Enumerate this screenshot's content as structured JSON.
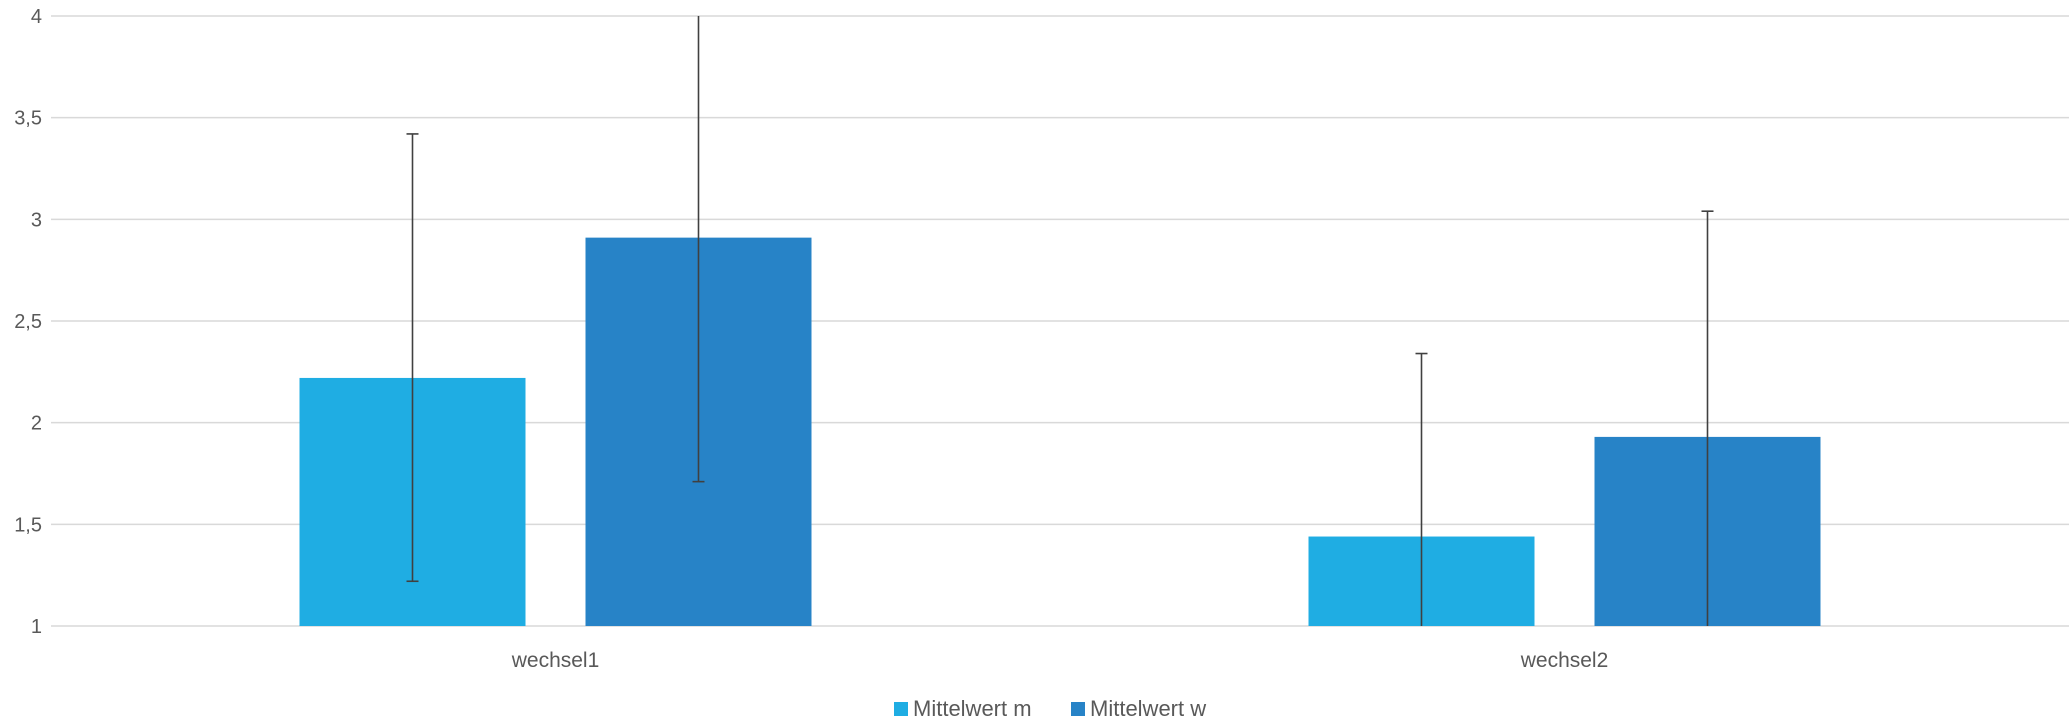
{
  "chart_data": {
    "type": "bar",
    "categories": [
      "wechsel1",
      "wechsel2"
    ],
    "series": [
      {
        "name": "Mittelwert m",
        "color": "#1FADE3",
        "values": [
          2.22,
          1.44
        ],
        "error_high": [
          3.42,
          2.34
        ],
        "error_low": [
          1.22,
          1.0
        ]
      },
      {
        "name": "Mittelwert w",
        "color": "#2783C7",
        "values": [
          2.91,
          1.93
        ],
        "error_high": [
          4.0,
          3.04
        ],
        "error_low": [
          1.71,
          1.0
        ]
      }
    ],
    "y_ticks": [
      "1",
      "1,5",
      "2",
      "2,5",
      "3",
      "3,5",
      "4"
    ],
    "y_tick_values": [
      1,
      1.5,
      2,
      2.5,
      3,
      3.5,
      4
    ],
    "ylim": [
      1,
      4
    ],
    "grid": true,
    "legend": "bottom",
    "title": "",
    "xlabel": "",
    "ylabel": ""
  }
}
